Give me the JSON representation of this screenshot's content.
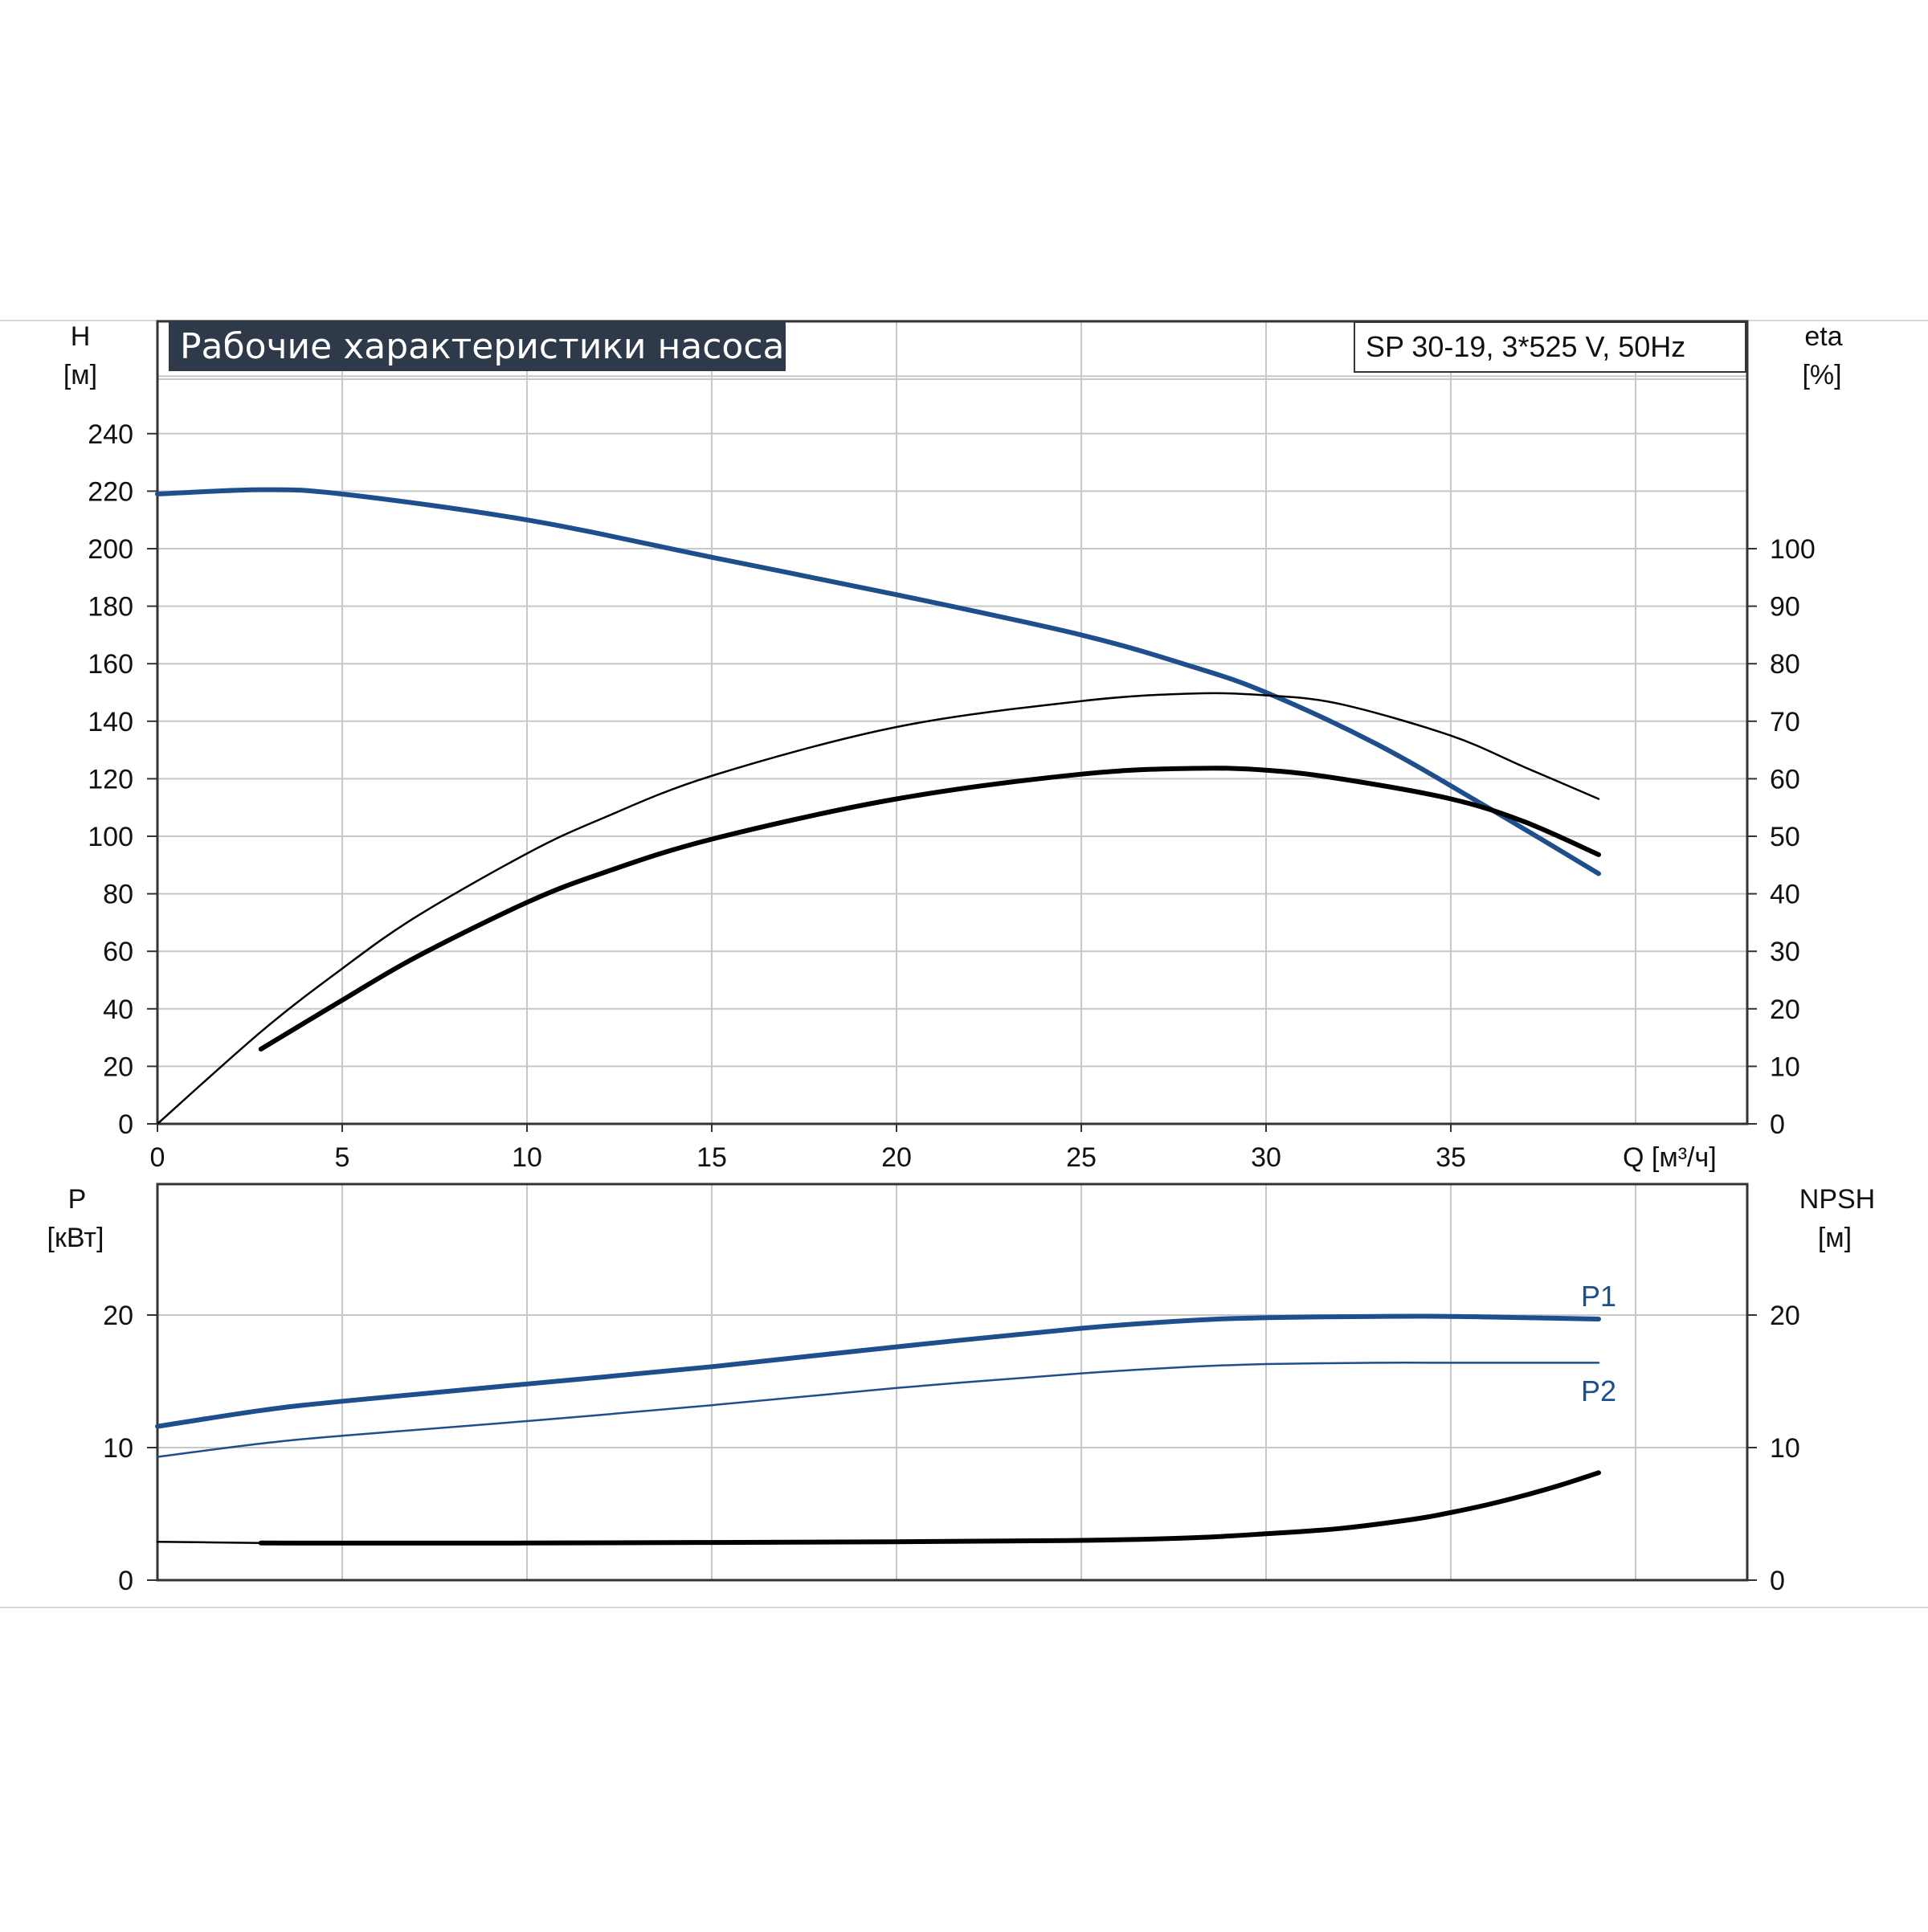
{
  "title": "Рабочие характеристики насоса",
  "model": "SP 30-19, 3*525 V, 50Hz",
  "colors": {
    "blue": "#1f4e8c",
    "black": "#000000",
    "grid": "#c8c8c8",
    "title_bg": "#2e3a4a"
  },
  "top_axes": {
    "left_label": "H",
    "left_unit": "[м]",
    "right_label": "eta",
    "right_unit": "[%]",
    "x_label": "Q [м³/ч]",
    "x_ticks": [
      "0",
      "5",
      "10",
      "15",
      "20",
      "25",
      "30",
      "35"
    ],
    "left_ticks": [
      "0",
      "20",
      "40",
      "60",
      "80",
      "100",
      "120",
      "140",
      "160",
      "180",
      "200",
      "220",
      "240"
    ],
    "right_ticks": [
      "0",
      "10",
      "20",
      "30",
      "40",
      "50",
      "60",
      "70",
      "80",
      "90",
      "100"
    ]
  },
  "bottom_axes": {
    "left_label": "P",
    "left_unit": "[кВт]",
    "right_label": "NPSH",
    "right_unit": "[м]",
    "left_ticks": [
      "0",
      "10",
      "20"
    ],
    "right_ticks": [
      "0",
      "10",
      "20"
    ]
  },
  "curve_labels": {
    "p1": "P1",
    "p2": "P2"
  },
  "chart_data": [
    {
      "type": "line",
      "title": "Рабочие характеристики насоса",
      "xlabel": "Q [м³/ч]",
      "ylabel": "H [м]",
      "y2label": "eta [%]",
      "xlim": [
        0,
        40
      ],
      "ylim": [
        0,
        260
      ],
      "y2lim": [
        0,
        130
      ],
      "grid": true,
      "series": [
        {
          "axis": "left",
          "color": "#1f4e8c",
          "style": "thick",
          "x": [
            0,
            2.8,
            5,
            10,
            15,
            20,
            25,
            28,
            30,
            33,
            36,
            39
          ],
          "y": [
            219,
            220.5,
            219,
            210,
            197,
            184,
            170,
            159,
            150,
            132,
            110,
            87
          ]
        },
        {
          "axis": "right",
          "color": "#000000",
          "style": "thin",
          "x": [
            0,
            2.8,
            5,
            7,
            10,
            12,
            15,
            20,
            25,
            28,
            30,
            32,
            35,
            37,
            39
          ],
          "y": [
            0,
            16,
            27,
            36,
            47,
            53,
            60.5,
            69,
            73.5,
            74.8,
            74.5,
            73,
            67.5,
            62,
            56.5
          ]
        },
        {
          "axis": "right",
          "color": "#000000",
          "style": "thick",
          "x": [
            2.8,
            5,
            7,
            10,
            12,
            15,
            20,
            25,
            28,
            30,
            32,
            35,
            37,
            39
          ],
          "y": [
            13,
            21.5,
            29,
            38.5,
            43.5,
            49.5,
            56.5,
            60.8,
            61.8,
            61.5,
            60,
            56.5,
            52.5,
            46.8
          ]
        }
      ]
    },
    {
      "type": "line",
      "ylabel": "P [кВт]",
      "y2label": "NPSH [м]",
      "xlim": [
        0,
        40
      ],
      "ylim": [
        0,
        30
      ],
      "y2lim": [
        0,
        30
      ],
      "grid": true,
      "series": [
        {
          "name": "P1",
          "axis": "left",
          "color": "#1f4e8c",
          "style": "thick",
          "x": [
            0,
            2.8,
            5,
            10,
            15,
            20,
            25,
            28,
            30,
            33,
            35,
            37,
            39
          ],
          "y": [
            11.6,
            12.8,
            13.5,
            14.8,
            16.1,
            17.6,
            19.0,
            19.6,
            19.8,
            19.9,
            19.9,
            19.8,
            19.7
          ]
        },
        {
          "name": "P2",
          "axis": "left",
          "color": "#1f4e8c",
          "style": "thin",
          "x": [
            0,
            2.8,
            5,
            10,
            15,
            20,
            25,
            28,
            30,
            33,
            35,
            37,
            39
          ],
          "y": [
            9.3,
            10.3,
            10.9,
            12.0,
            13.2,
            14.5,
            15.6,
            16.1,
            16.3,
            16.4,
            16.4,
            16.4,
            16.4
          ]
        },
        {
          "axis": "right",
          "color": "#000000",
          "style": "thin",
          "x": [
            0,
            2.8
          ],
          "y": [
            2.9,
            2.8
          ]
        },
        {
          "axis": "right",
          "color": "#000000",
          "style": "thick",
          "x": [
            2.8,
            10,
            20,
            25,
            28,
            30,
            32,
            34,
            35,
            36,
            37,
            38,
            39
          ],
          "y": [
            2.8,
            2.8,
            2.9,
            3.0,
            3.2,
            3.5,
            3.9,
            4.6,
            5.1,
            5.7,
            6.4,
            7.2,
            8.1
          ]
        }
      ]
    }
  ]
}
